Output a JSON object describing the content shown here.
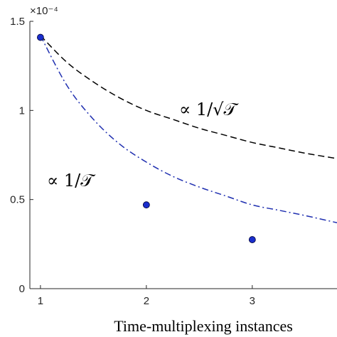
{
  "chart_data": {
    "type": "line",
    "xlabel": "Time-multiplexing instances",
    "ylabel": "",
    "xlim": [
      0.9,
      3.8
    ],
    "ylim": [
      0,
      1.5
    ],
    "x_ticks": [
      "1",
      "2",
      "3"
    ],
    "y_ticks": [
      "0",
      "0.5",
      "1",
      "1.5"
    ],
    "y_exponent": "×10⁻⁴",
    "grid": false,
    "series": [
      {
        "kind": "dashed-curve",
        "color": "#000000",
        "annotation": "∝ 1/√𝒯",
        "x": [
          1,
          1.25,
          1.5,
          1.75,
          2,
          2.25,
          2.5,
          2.75,
          3,
          3.25,
          3.5,
          3.8
        ],
        "y": [
          1.42,
          1.27,
          1.16,
          1.07,
          1.0,
          0.95,
          0.9,
          0.86,
          0.82,
          0.79,
          0.76,
          0.73
        ]
      },
      {
        "kind": "dashdot-curve",
        "color": "#1f2fb0",
        "annotation": "∝ 1/𝒯",
        "x": [
          1,
          1.25,
          1.5,
          1.75,
          2,
          2.25,
          2.5,
          2.75,
          3,
          3.25,
          3.5,
          3.8
        ],
        "y": [
          1.42,
          1.14,
          0.95,
          0.81,
          0.71,
          0.63,
          0.57,
          0.52,
          0.47,
          0.44,
          0.41,
          0.37
        ]
      },
      {
        "kind": "markers",
        "color": "#1a2ecc",
        "x": [
          1,
          2,
          3
        ],
        "y": [
          1.41,
          0.47,
          0.275
        ]
      }
    ]
  }
}
